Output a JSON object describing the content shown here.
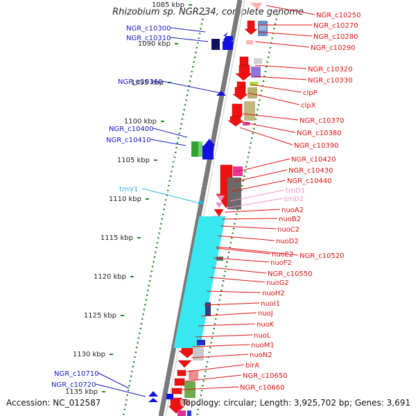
{
  "title": "Rhizobium sp. NGR234, complete genome",
  "footer": {
    "accession": "Accession: NC_012587",
    "topology": "Topology: circular; Length: 3,925,702 bp; Genes: 3,691"
  },
  "colors": {
    "backbone": "#7a7a7a",
    "tick_dots": "#1a8a1a",
    "forward_label": "#1515c8",
    "reverse_label": "#e01010",
    "trna_fwd": "#28b4e0",
    "trna_rev": "#f090c8"
  },
  "ticks": [
    "1085 kbp",
    "1090 kbp",
    "1095 kbp",
    "1100 kbp",
    "1105 kbp",
    "1110 kbp",
    "1115 kbp",
    "1120 kbp",
    "1125 kbp",
    "1130 kbp",
    "1135 kbp"
  ],
  "left_labels": [
    {
      "text": "NGR_c10300",
      "color": "#1515c8"
    },
    {
      "text": "NGR_c10310",
      "color": "#1515c8"
    },
    {
      "text": "NGR_c10360",
      "color": "#1515c8"
    },
    {
      "text": "NGR_c10400",
      "color": "#1515c8"
    },
    {
      "text": "NGR_c10410",
      "color": "#1515c8"
    },
    {
      "text": "trnV1",
      "color": "#28b4e0"
    },
    {
      "text": "NGR_c10710",
      "color": "#1515c8"
    },
    {
      "text": "NGR_c10720",
      "color": "#1515c8"
    }
  ],
  "right_labels": [
    {
      "text": "NGR_c10250",
      "color": "#e01010"
    },
    {
      "text": "NGR_c10270",
      "color": "#e01010"
    },
    {
      "text": "NGR_c10280",
      "color": "#e01010"
    },
    {
      "text": "NGR_c10290",
      "color": "#e01010"
    },
    {
      "text": "NGR_c10320",
      "color": "#e01010"
    },
    {
      "text": "NGR_c10330",
      "color": "#e01010"
    },
    {
      "text": "clpP",
      "color": "#e01010"
    },
    {
      "text": "clpX",
      "color": "#e01010"
    },
    {
      "text": "NGR_c10370",
      "color": "#e01010"
    },
    {
      "text": "NGR_c10380",
      "color": "#e01010"
    },
    {
      "text": "NGR_c10390",
      "color": "#e01010"
    },
    {
      "text": "NGR_c10420",
      "color": "#e01010"
    },
    {
      "text": "NGR_c10430",
      "color": "#e01010"
    },
    {
      "text": "NGR_c10440",
      "color": "#e01010"
    },
    {
      "text": "trnD1",
      "color": "#f090c8"
    },
    {
      "text": "trnD2",
      "color": "#f090c8"
    },
    {
      "text": "nuoA2",
      "color": "#e01010"
    },
    {
      "text": "nuoB2",
      "color": "#e01010"
    },
    {
      "text": "nuoC2",
      "color": "#e01010"
    },
    {
      "text": "nuoD2",
      "color": "#e01010"
    },
    {
      "text": "nuoE2",
      "color": "#e01010"
    },
    {
      "text": "NGR_c10520",
      "color": "#e01010"
    },
    {
      "text": "nuoF2",
      "color": "#e01010"
    },
    {
      "text": "NGR_c10550",
      "color": "#e01010"
    },
    {
      "text": "nuoG2",
      "color": "#e01010"
    },
    {
      "text": "nuoH2",
      "color": "#e01010"
    },
    {
      "text": "nuoI1",
      "color": "#e01010"
    },
    {
      "text": "nuoJ",
      "color": "#e01010"
    },
    {
      "text": "nuoK",
      "color": "#e01010"
    },
    {
      "text": "nuoL",
      "color": "#e01010"
    },
    {
      "text": "nuoM1",
      "color": "#e01010"
    },
    {
      "text": "nuoN2",
      "color": "#e01010"
    },
    {
      "text": "birA",
      "color": "#e01010"
    },
    {
      "text": "NGR_c10650",
      "color": "#e01010"
    },
    {
      "text": "NGR_c10660",
      "color": "#e01010"
    }
  ]
}
